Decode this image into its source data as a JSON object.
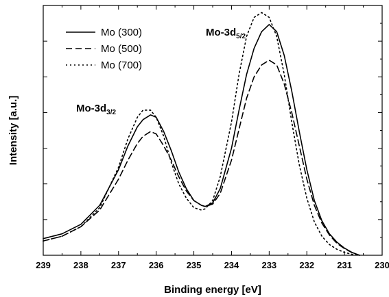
{
  "chart_data": {
    "type": "line",
    "xlabel": "Binding energy [eV]",
    "ylabel": "Intensity [a.u.]",
    "xlim": [
      239,
      230
    ],
    "x_reversed": true,
    "y_ticks_labeled": false,
    "x_ticks": [
      239,
      238,
      237,
      236,
      235,
      234,
      233,
      232,
      231,
      230
    ],
    "x_tick_labels": [
      "239",
      "238",
      "237",
      "236",
      "235",
      "234",
      "233",
      "232",
      "231",
      "230"
    ],
    "ylim": [
      0,
      1.05
    ],
    "grid": false,
    "legend_position": "top-left",
    "annotations": [
      {
        "main": "Mo-3d",
        "sub": "3/2",
        "x": 236.55,
        "y": 0.77
      },
      {
        "main": "Mo-3d",
        "sub": "5/2",
        "x": 232.95,
        "y": 1.02
      }
    ],
    "x": [
      239.0,
      238.5,
      238.0,
      237.5,
      237.0,
      236.75,
      236.5,
      236.35,
      236.15,
      236.0,
      235.8,
      235.6,
      235.4,
      235.2,
      235.0,
      234.8,
      234.7,
      234.5,
      234.3,
      234.0,
      233.8,
      233.6,
      233.4,
      233.2,
      233.0,
      232.8,
      232.6,
      232.4,
      232.2,
      232.0,
      231.8,
      231.6,
      231.4,
      231.2,
      231.0,
      230.8,
      230.6
    ],
    "series": [
      {
        "name": "Mo (300)",
        "style": "solid",
        "color": "#000000",
        "values": [
          0.07,
          0.09,
          0.13,
          0.21,
          0.36,
          0.46,
          0.54,
          0.57,
          0.59,
          0.58,
          0.52,
          0.44,
          0.35,
          0.28,
          0.23,
          0.21,
          0.205,
          0.22,
          0.28,
          0.45,
          0.61,
          0.76,
          0.87,
          0.94,
          0.97,
          0.94,
          0.84,
          0.69,
          0.52,
          0.36,
          0.23,
          0.145,
          0.09,
          0.055,
          0.03,
          0.012,
          0.0
        ]
      },
      {
        "name": "Mo (500)",
        "style": "dashed",
        "color": "#000000",
        "values": [
          0.06,
          0.08,
          0.12,
          0.19,
          0.32,
          0.4,
          0.47,
          0.5,
          0.52,
          0.51,
          0.46,
          0.4,
          0.33,
          0.27,
          0.23,
          0.21,
          0.205,
          0.215,
          0.26,
          0.4,
          0.53,
          0.66,
          0.75,
          0.8,
          0.82,
          0.8,
          0.72,
          0.6,
          0.46,
          0.32,
          0.21,
          0.135,
          0.085,
          0.05,
          0.028,
          0.011,
          0.0
        ]
      },
      {
        "name": "Mo (700)",
        "style": "dotted",
        "color": "#000000",
        "values": [
          0.06,
          0.08,
          0.12,
          0.2,
          0.37,
          0.49,
          0.58,
          0.61,
          0.61,
          0.58,
          0.5,
          0.39,
          0.3,
          0.24,
          0.2,
          0.19,
          0.195,
          0.23,
          0.33,
          0.56,
          0.76,
          0.92,
          1.0,
          1.02,
          1.0,
          0.92,
          0.76,
          0.56,
          0.38,
          0.24,
          0.14,
          0.08,
          0.045,
          0.025,
          0.012,
          0.004,
          0.0
        ]
      }
    ]
  }
}
